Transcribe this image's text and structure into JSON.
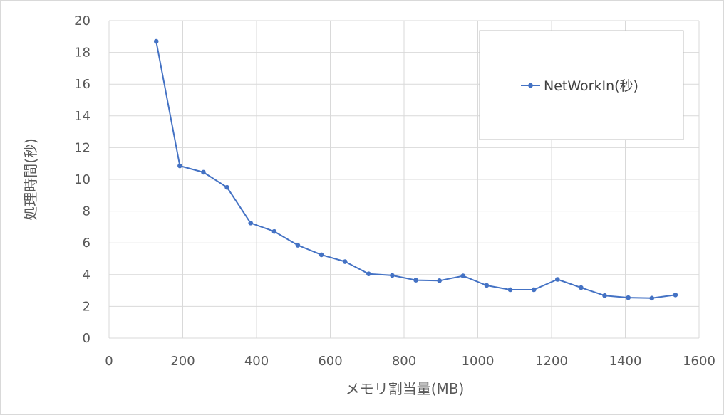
{
  "chart_data": {
    "type": "scatter",
    "mode": "lines+markers",
    "xlabel": "メモリ割当量(MB)",
    "ylabel": "処理時間(秒)",
    "xlim": [
      0,
      1600
    ],
    "ylim": [
      0,
      20
    ],
    "x_ticks": [
      0,
      200,
      400,
      600,
      800,
      1000,
      1200,
      1400,
      1600
    ],
    "y_ticks": [
      0,
      2,
      4,
      6,
      8,
      10,
      12,
      14,
      16,
      18,
      20
    ],
    "grid": true,
    "legend_position": "top-right",
    "series": [
      {
        "name": "NetWorkIn(秒)",
        "color": "#4472c4",
        "points": [
          [
            128,
            18.7
          ],
          [
            192,
            10.85
          ],
          [
            256,
            10.45
          ],
          [
            320,
            9.5
          ],
          [
            384,
            7.25
          ],
          [
            448,
            6.72
          ],
          [
            512,
            5.85
          ],
          [
            576,
            5.25
          ],
          [
            640,
            4.82
          ],
          [
            704,
            4.05
          ],
          [
            768,
            3.95
          ],
          [
            832,
            3.65
          ],
          [
            896,
            3.62
          ],
          [
            960,
            3.92
          ],
          [
            1024,
            3.32
          ],
          [
            1088,
            3.05
          ],
          [
            1152,
            3.05
          ],
          [
            1216,
            3.7
          ],
          [
            1280,
            3.18
          ],
          [
            1344,
            2.68
          ],
          [
            1408,
            2.55
          ],
          [
            1472,
            2.52
          ],
          [
            1536,
            2.72
          ]
        ]
      }
    ]
  }
}
